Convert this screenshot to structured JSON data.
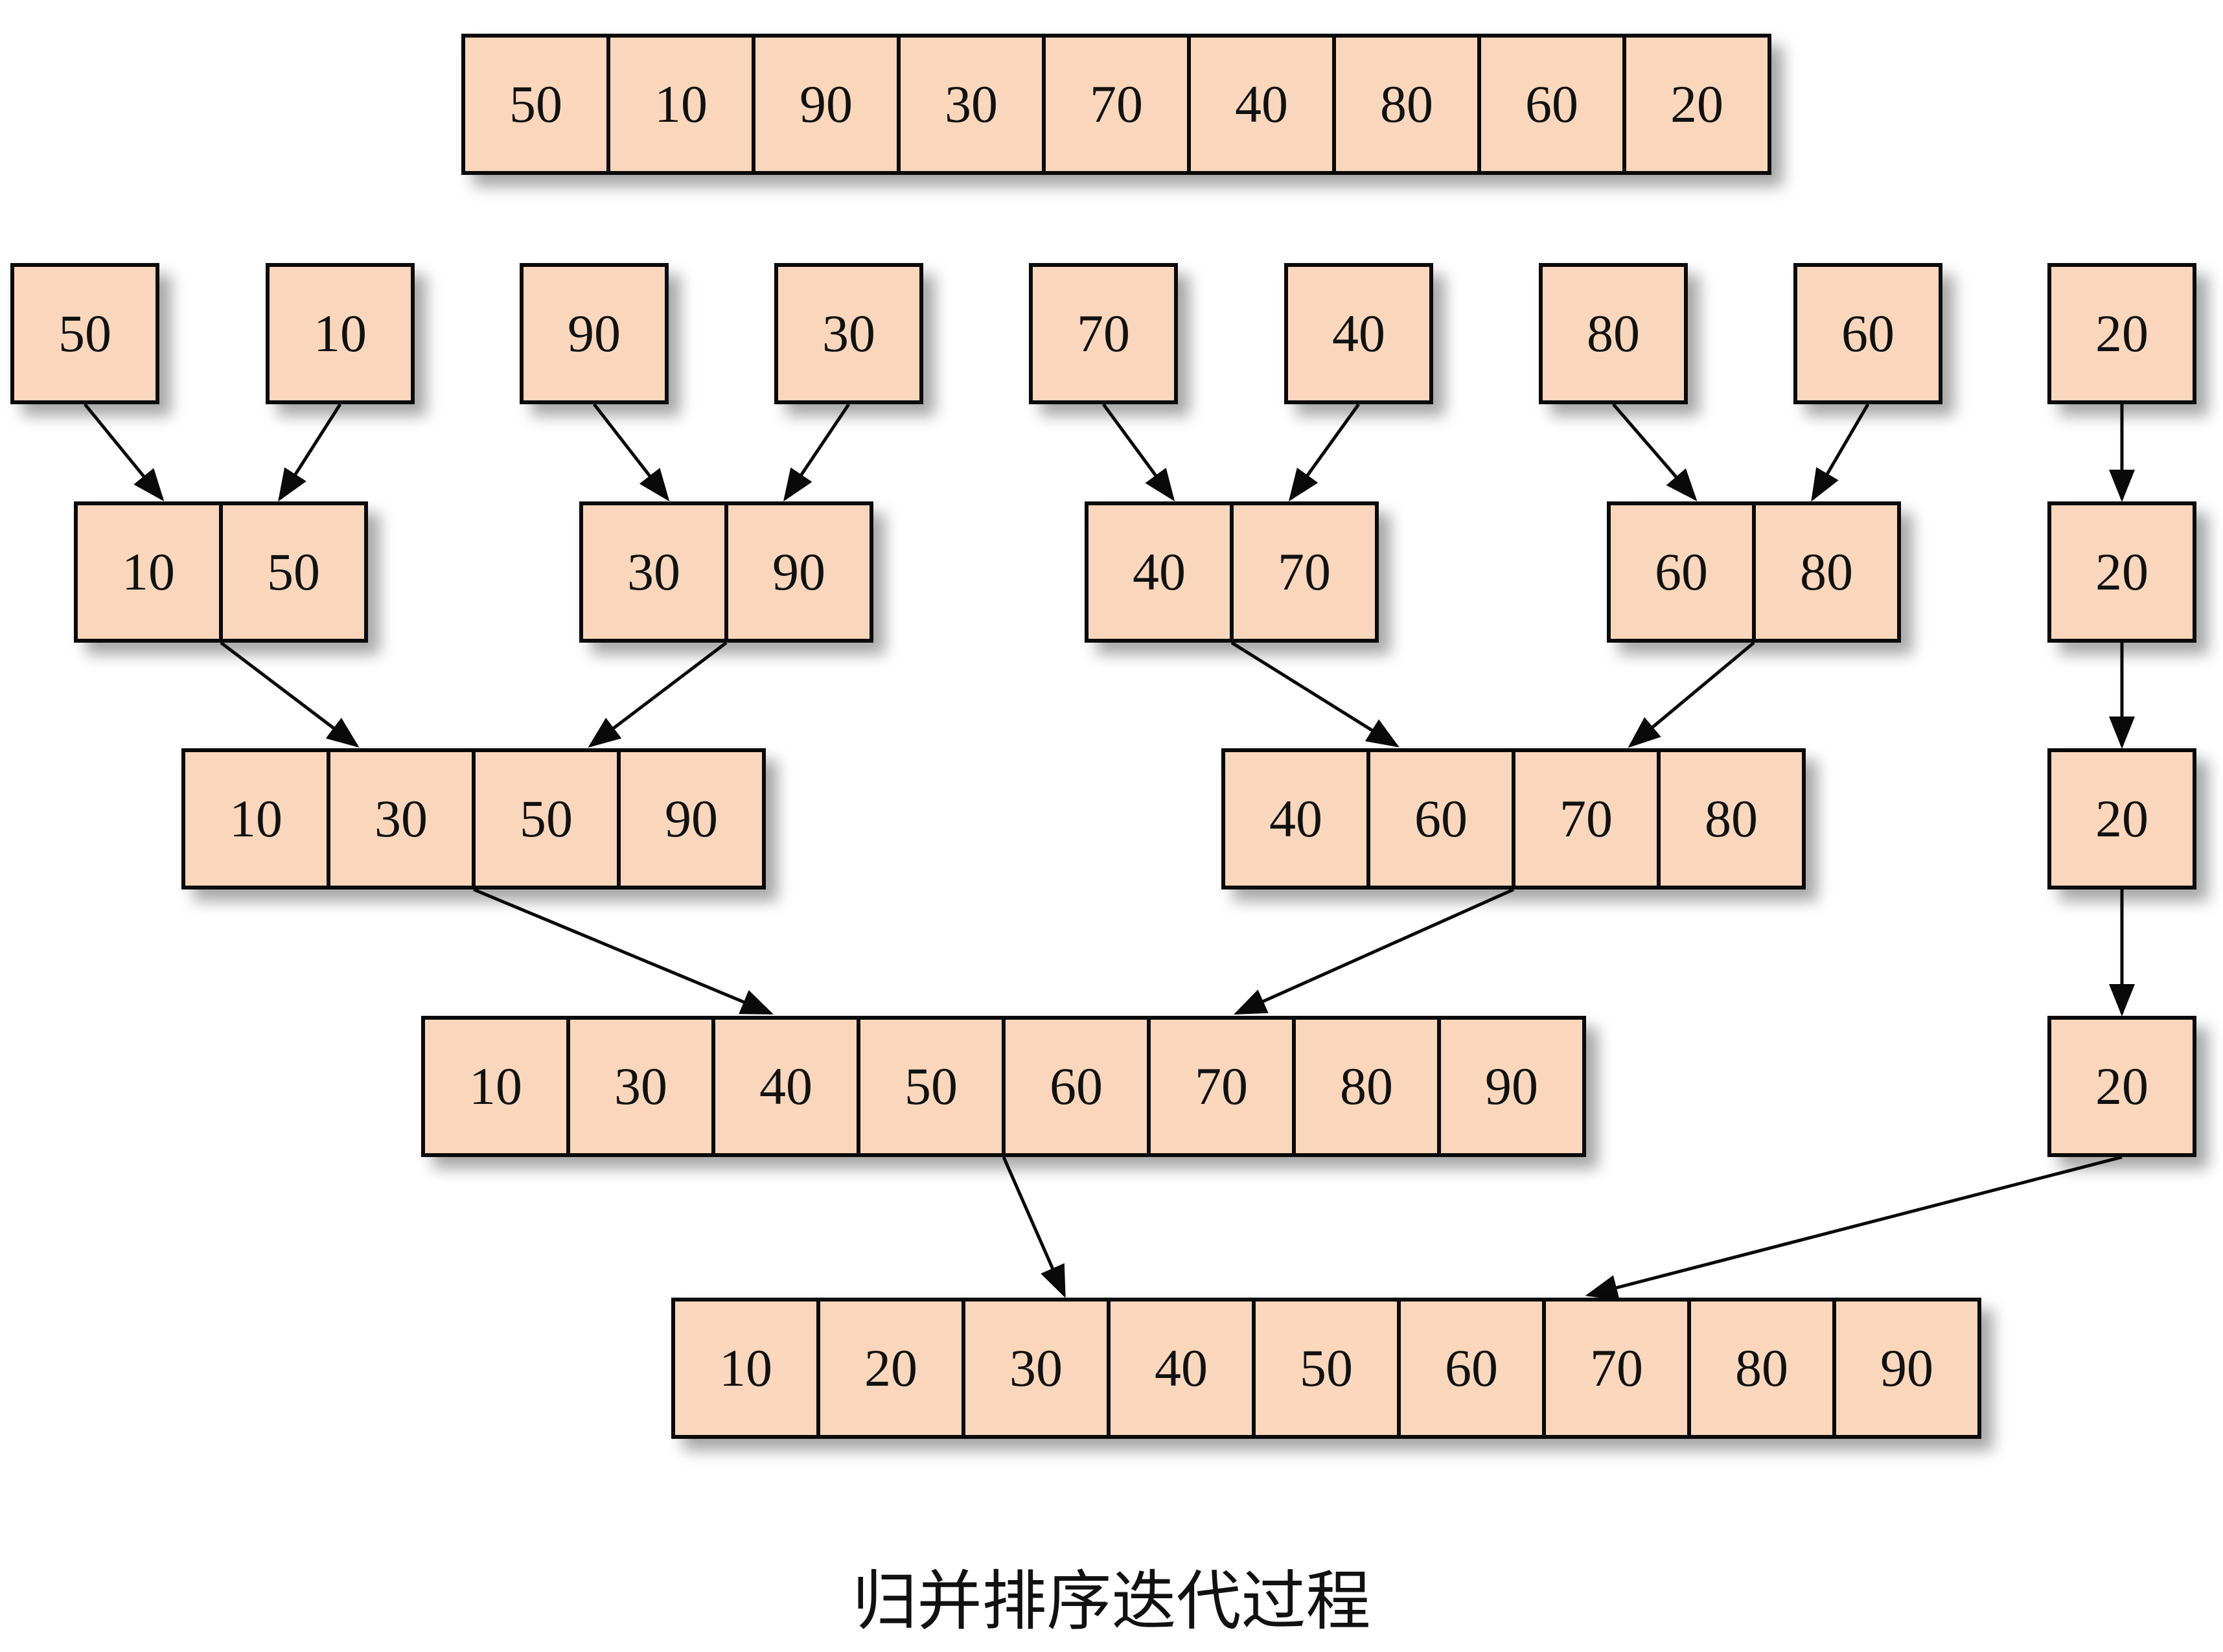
{
  "caption": "归并排序迭代过程",
  "colors": {
    "cell_fill": "#fad7bc",
    "border": "#0a0a0a",
    "arrow": "#0a0a0a"
  },
  "rows": [
    {
      "level": "initial",
      "groups": [
        {
          "values": [
            50,
            10,
            90,
            30,
            70,
            40,
            80,
            60,
            20
          ]
        }
      ]
    },
    {
      "level": "split",
      "groups": [
        {
          "values": [
            50
          ]
        },
        {
          "values": [
            10
          ]
        },
        {
          "values": [
            90
          ]
        },
        {
          "values": [
            30
          ]
        },
        {
          "values": [
            70
          ]
        },
        {
          "values": [
            40
          ]
        },
        {
          "values": [
            80
          ]
        },
        {
          "values": [
            60
          ]
        },
        {
          "values": [
            20
          ]
        }
      ]
    },
    {
      "level": "merge-1",
      "groups": [
        {
          "values": [
            10,
            50
          ]
        },
        {
          "values": [
            30,
            90
          ]
        },
        {
          "values": [
            40,
            70
          ]
        },
        {
          "values": [
            60,
            80
          ]
        },
        {
          "values": [
            20
          ]
        }
      ]
    },
    {
      "level": "merge-2",
      "groups": [
        {
          "values": [
            10,
            30,
            50,
            90
          ]
        },
        {
          "values": [
            40,
            60,
            70,
            80
          ]
        },
        {
          "values": [
            20
          ]
        }
      ]
    },
    {
      "level": "merge-3",
      "groups": [
        {
          "values": [
            10,
            30,
            40,
            50,
            60,
            70,
            80,
            90
          ]
        },
        {
          "values": [
            20
          ]
        }
      ]
    },
    {
      "level": "result",
      "groups": [
        {
          "values": [
            10,
            20,
            30,
            40,
            50,
            60,
            70,
            80,
            90
          ]
        }
      ]
    }
  ],
  "edges": [
    {
      "from": "1.0",
      "to": "2.0"
    },
    {
      "from": "1.1",
      "to": "2.0"
    },
    {
      "from": "1.2",
      "to": "2.1"
    },
    {
      "from": "1.3",
      "to": "2.1"
    },
    {
      "from": "1.4",
      "to": "2.2"
    },
    {
      "from": "1.5",
      "to": "2.2"
    },
    {
      "from": "1.6",
      "to": "2.3"
    },
    {
      "from": "1.7",
      "to": "2.3"
    },
    {
      "from": "1.8",
      "to": "2.4"
    },
    {
      "from": "2.0",
      "to": "3.0"
    },
    {
      "from": "2.1",
      "to": "3.0"
    },
    {
      "from": "2.2",
      "to": "3.1"
    },
    {
      "from": "2.3",
      "to": "3.1"
    },
    {
      "from": "2.4",
      "to": "3.2"
    },
    {
      "from": "3.0",
      "to": "4.0"
    },
    {
      "from": "3.1",
      "to": "4.0"
    },
    {
      "from": "3.2",
      "to": "4.1"
    },
    {
      "from": "4.0",
      "to": "5.0"
    },
    {
      "from": "4.1",
      "to": "5.0"
    }
  ]
}
